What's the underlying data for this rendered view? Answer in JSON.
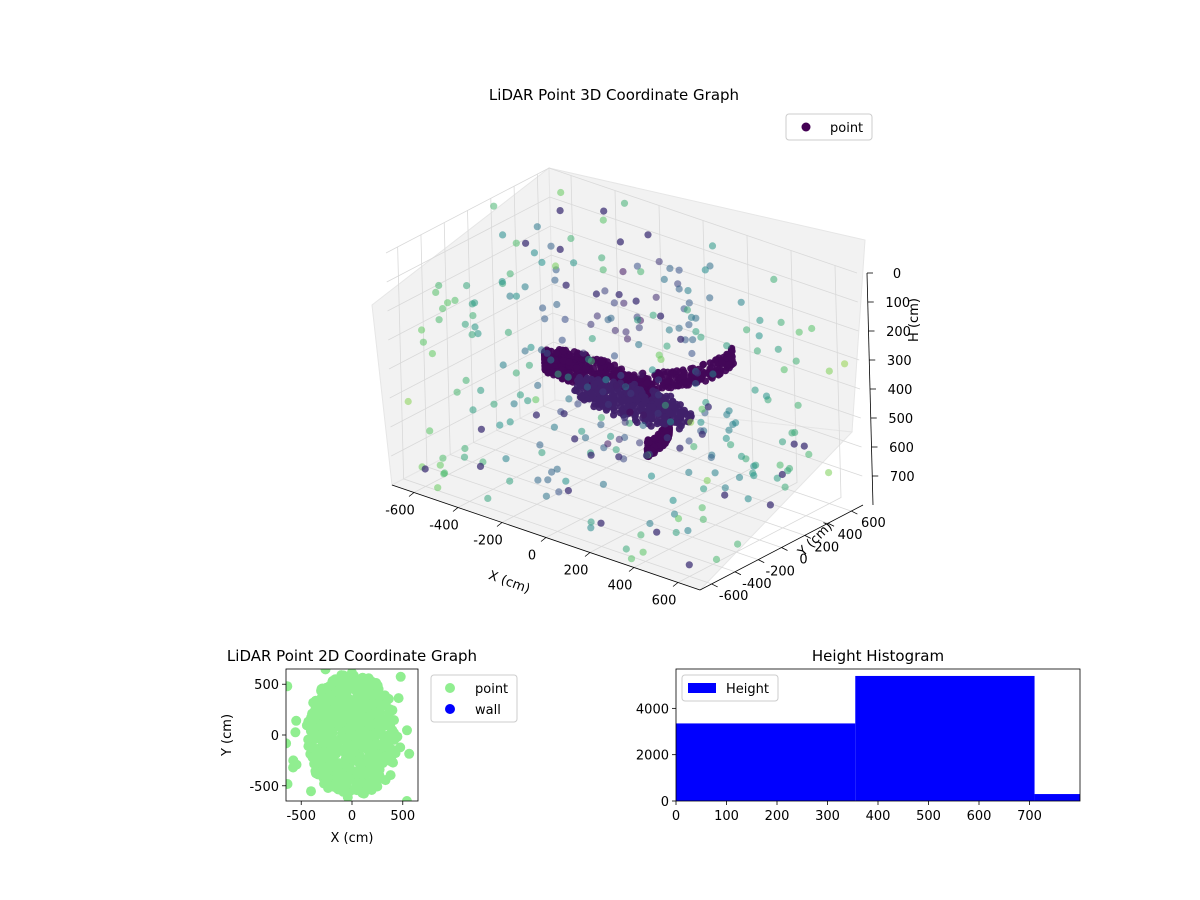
{
  "chart_data": [
    {
      "type": "scatter3d",
      "title": "LiDAR Point 3D Coordinate Graph",
      "xlabel": "X (cm)",
      "ylabel": "Y (cm)",
      "zlabel": "H (cm)",
      "xlim": [
        -700,
        700
      ],
      "ylim": [
        -700,
        700
      ],
      "zlim": [
        0,
        800
      ],
      "z_inverted": true,
      "x_ticks": [
        -600,
        -400,
        -200,
        0,
        200,
        400,
        600
      ],
      "y_ticks": [
        -600,
        -400,
        -200,
        0,
        200,
        400,
        600
      ],
      "z_ticks": [
        0,
        100,
        200,
        300,
        400,
        500,
        600,
        700
      ],
      "grid": true,
      "legend": {
        "entries": [
          "point"
        ],
        "placement": "top-right"
      },
      "colormap": "viridis",
      "point_color": "#440154",
      "series": [
        {
          "name": "point",
          "description_points": [
            [
              -300,
              -200,
              560
            ],
            [
              -200,
              -150,
              540
            ],
            [
              -100,
              -250,
              580
            ],
            [
              0,
              -300,
              600
            ],
            [
              100,
              -250,
              590
            ],
            [
              200,
              -200,
              570
            ],
            [
              300,
              -100,
              540
            ],
            [
              350,
              0,
              500
            ],
            [
              300,
              150,
              450
            ],
            [
              200,
              250,
              380
            ],
            [
              100,
              300,
              300
            ],
            [
              0,
              320,
              250
            ],
            [
              -100,
              300,
              220
            ],
            [
              -150,
              250,
              200
            ],
            [
              -200,
              150,
              190
            ],
            [
              -100,
              0,
              470
            ],
            [
              0,
              50,
              460
            ],
            [
              100,
              100,
              450
            ],
            [
              150,
              0,
              480
            ],
            [
              50,
              -100,
              500
            ],
            [
              -50,
              -50,
              490
            ],
            [
              -600,
              600,
              100
            ],
            [
              -550,
              500,
              200
            ],
            [
              -500,
              450,
              300
            ],
            [
              -600,
              300,
              150
            ],
            [
              -400,
              600,
              50
            ],
            [
              -300,
              550,
              120
            ],
            [
              -200,
              600,
              80
            ],
            [
              500,
              500,
              600
            ],
            [
              550,
              300,
              650
            ],
            [
              600,
              100,
              700
            ],
            [
              500,
              -100,
              650
            ],
            [
              400,
              -500,
              720
            ],
            [
              600,
              -600,
              760
            ],
            [
              -600,
              -600,
              740
            ],
            [
              -400,
              -500,
              700
            ],
            [
              200,
              -600,
              720
            ],
            [
              0,
              -500,
              680
            ],
            [
              -500,
              -300,
              640
            ],
            [
              600,
              400,
              560
            ]
          ]
        }
      ]
    },
    {
      "type": "scatter",
      "title": "LiDAR Point 2D Coordinate Graph",
      "xlabel": "X (cm)",
      "ylabel": "Y (cm)",
      "xlim": [
        -650,
        650
      ],
      "ylim": [
        -650,
        650
      ],
      "x_ticks": [
        -500,
        0,
        500
      ],
      "y_ticks": [
        -500,
        0,
        500
      ],
      "legend": {
        "entries": [
          "point",
          "wall"
        ],
        "placement": "outside-right"
      },
      "series": [
        {
          "name": "point",
          "color": "#90ee90",
          "shape": "ellipse",
          "center": [
            0,
            0
          ],
          "radius_x": 500,
          "radius_y": 620
        },
        {
          "name": "wall",
          "color": "#0000ff",
          "values": []
        }
      ]
    },
    {
      "type": "histogram",
      "title": "Height Histogram",
      "xlabel": "",
      "ylabel": "",
      "xlim": [
        0,
        800
      ],
      "ylim": [
        0,
        5700
      ],
      "x_ticks": [
        0,
        100,
        200,
        300,
        400,
        500,
        600,
        700
      ],
      "y_ticks": [
        0,
        2000,
        4000
      ],
      "legend": {
        "entries": [
          "Height"
        ],
        "placement": "top-left"
      },
      "color": "#0000ff",
      "bins": [
        {
          "from": 0,
          "to": 355,
          "count": 3350
        },
        {
          "from": 355,
          "to": 710,
          "count": 5400
        },
        {
          "from": 710,
          "to": 800,
          "count": 300
        }
      ]
    }
  ]
}
